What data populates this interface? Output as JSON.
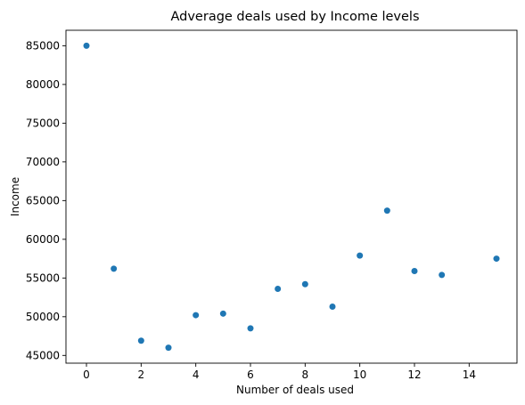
{
  "chart_data": {
    "type": "scatter",
    "title": "Adverage deals used by Income levels",
    "xlabel": "Number of deals used",
    "ylabel": "Income",
    "x": [
      0,
      1,
      2,
      3,
      4,
      5,
      6,
      7,
      8,
      9,
      10,
      11,
      12,
      13,
      15
    ],
    "y": [
      85000,
      56200,
      46900,
      46000,
      50200,
      50400,
      48500,
      53600,
      54200,
      51300,
      57900,
      63700,
      55900,
      55400,
      57500
    ],
    "xlim": [
      -0.75,
      15.75
    ],
    "ylim": [
      44000,
      87000
    ],
    "xticks": [
      0,
      2,
      4,
      6,
      8,
      10,
      12,
      14
    ],
    "yticks": [
      45000,
      50000,
      55000,
      60000,
      65000,
      70000,
      75000,
      80000,
      85000
    ],
    "xtick_labels": [
      "0",
      "2",
      "4",
      "6",
      "8",
      "10",
      "12",
      "14"
    ],
    "ytick_labels": [
      "45000",
      "50000",
      "55000",
      "60000",
      "65000",
      "70000",
      "75000",
      "80000",
      "85000"
    ],
    "grid": false,
    "marker_color": "#1f77b4"
  }
}
